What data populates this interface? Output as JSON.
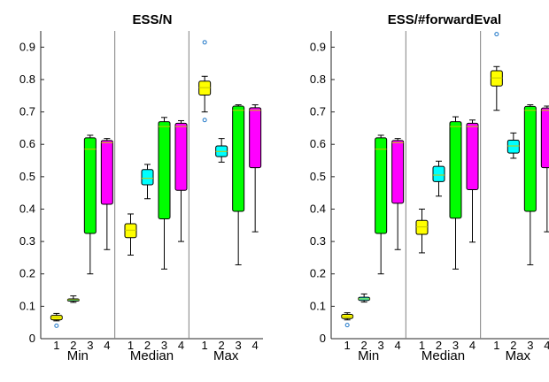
{
  "chart_data": [
    {
      "type": "box",
      "title": "ESS/N",
      "ylim": [
        0,
        0.95
      ],
      "yticks": [
        "0",
        "0.1",
        "0.2",
        "0.3",
        "0.4",
        "0.5",
        "0.6",
        "0.7",
        "0.8",
        "0.9"
      ],
      "box_labels": [
        "1",
        "2",
        "3",
        "4"
      ],
      "groups": [
        {
          "label": "Min",
          "boxes": [
            {
              "label": "1",
              "color": "#ffff00",
              "whisker_low": 0.055,
              "q1": 0.058,
              "median": 0.065,
              "q3": 0.072,
              "whisker_high": 0.078,
              "outliers": [
                0.04
              ]
            },
            {
              "label": "2",
              "color": "#00ffff",
              "whisker_low": 0.112,
              "q1": 0.116,
              "median": 0.12,
              "q3": 0.123,
              "whisker_high": 0.132,
              "outliers": []
            },
            {
              "label": "3",
              "color": "#00ff00",
              "whisker_low": 0.2,
              "q1": 0.325,
              "median": 0.585,
              "q3": 0.62,
              "whisker_high": 0.628,
              "outliers": []
            },
            {
              "label": "4",
              "color": "#ff00ff",
              "whisker_low": 0.275,
              "q1": 0.415,
              "median": 0.605,
              "q3": 0.612,
              "whisker_high": 0.618,
              "outliers": []
            }
          ]
        },
        {
          "label": "Median",
          "boxes": [
            {
              "label": "1",
              "color": "#ffff00",
              "whisker_low": 0.258,
              "q1": 0.312,
              "median": 0.335,
              "q3": 0.355,
              "whisker_high": 0.385,
              "outliers": []
            },
            {
              "label": "2",
              "color": "#00ffff",
              "whisker_low": 0.432,
              "q1": 0.475,
              "median": 0.495,
              "q3": 0.522,
              "whisker_high": 0.538,
              "outliers": []
            },
            {
              "label": "3",
              "color": "#00ff00",
              "whisker_low": 0.215,
              "q1": 0.37,
              "median": 0.655,
              "q3": 0.67,
              "whisker_high": 0.683,
              "outliers": []
            },
            {
              "label": "4",
              "color": "#ff00ff",
              "whisker_low": 0.3,
              "q1": 0.458,
              "median": 0.655,
              "q3": 0.665,
              "whisker_high": 0.673,
              "outliers": []
            }
          ]
        },
        {
          "label": "Max",
          "boxes": [
            {
              "label": "1",
              "color": "#ffff00",
              "whisker_low": 0.7,
              "q1": 0.752,
              "median": 0.775,
              "q3": 0.795,
              "whisker_high": 0.81,
              "outliers": [
                0.675,
                0.915
              ]
            },
            {
              "label": "2",
              "color": "#00ffff",
              "whisker_low": 0.545,
              "q1": 0.562,
              "median": 0.578,
              "q3": 0.595,
              "whisker_high": 0.618,
              "outliers": []
            },
            {
              "label": "3",
              "color": "#00ff00",
              "whisker_low": 0.228,
              "q1": 0.393,
              "median": 0.705,
              "q3": 0.718,
              "whisker_high": 0.722,
              "outliers": []
            },
            {
              "label": "4",
              "color": "#ff00ff",
              "whisker_low": 0.33,
              "q1": 0.528,
              "median": 0.705,
              "q3": 0.713,
              "whisker_high": 0.722,
              "outliers": []
            }
          ]
        }
      ]
    },
    {
      "type": "box",
      "title": "ESS/#forwardEval",
      "ylim": [
        0,
        0.95
      ],
      "yticks": [
        "0",
        "0.1",
        "0.2",
        "0.3",
        "0.4",
        "0.5",
        "0.6",
        "0.7",
        "0.8",
        "0.9"
      ],
      "box_labels": [
        "1",
        "2",
        "3",
        "4"
      ],
      "groups": [
        {
          "label": "Min",
          "boxes": [
            {
              "label": "1",
              "color": "#ffff00",
              "whisker_low": 0.058,
              "q1": 0.062,
              "median": 0.068,
              "q3": 0.075,
              "whisker_high": 0.08,
              "outliers": [
                0.042
              ]
            },
            {
              "label": "2",
              "color": "#00ffff",
              "whisker_low": 0.113,
              "q1": 0.118,
              "median": 0.123,
              "q3": 0.128,
              "whisker_high": 0.138,
              "outliers": []
            },
            {
              "label": "3",
              "color": "#00ff00",
              "whisker_low": 0.2,
              "q1": 0.325,
              "median": 0.585,
              "q3": 0.62,
              "whisker_high": 0.628,
              "outliers": []
            },
            {
              "label": "4",
              "color": "#ff00ff",
              "whisker_low": 0.275,
              "q1": 0.418,
              "median": 0.605,
              "q3": 0.612,
              "whisker_high": 0.618,
              "outliers": []
            }
          ]
        },
        {
          "label": "Median",
          "boxes": [
            {
              "label": "1",
              "color": "#ffff00",
              "whisker_low": 0.265,
              "q1": 0.322,
              "median": 0.345,
              "q3": 0.365,
              "whisker_high": 0.4,
              "outliers": []
            },
            {
              "label": "2",
              "color": "#00ffff",
              "whisker_low": 0.44,
              "q1": 0.485,
              "median": 0.505,
              "q3": 0.532,
              "whisker_high": 0.548,
              "outliers": []
            },
            {
              "label": "3",
              "color": "#00ff00",
              "whisker_low": 0.215,
              "q1": 0.372,
              "median": 0.655,
              "q3": 0.67,
              "whisker_high": 0.685,
              "outliers": []
            },
            {
              "label": "4",
              "color": "#ff00ff",
              "whisker_low": 0.298,
              "q1": 0.46,
              "median": 0.655,
              "q3": 0.665,
              "whisker_high": 0.675,
              "outliers": []
            }
          ]
        },
        {
          "label": "Max",
          "boxes": [
            {
              "label": "1",
              "color": "#ffff00",
              "whisker_low": 0.705,
              "q1": 0.78,
              "median": 0.805,
              "q3": 0.827,
              "whisker_high": 0.84,
              "outliers": [
                0.94
              ]
            },
            {
              "label": "2",
              "color": "#00ffff",
              "whisker_low": 0.557,
              "q1": 0.573,
              "median": 0.595,
              "q3": 0.613,
              "whisker_high": 0.635,
              "outliers": []
            },
            {
              "label": "3",
              "color": "#00ff00",
              "whisker_low": 0.228,
              "q1": 0.393,
              "median": 0.705,
              "q3": 0.717,
              "whisker_high": 0.722,
              "outliers": []
            },
            {
              "label": "4",
              "color": "#ff00ff",
              "whisker_low": 0.33,
              "q1": 0.528,
              "median": 0.705,
              "q3": 0.712,
              "whisker_high": 0.718,
              "outliers": []
            }
          ]
        }
      ]
    }
  ]
}
